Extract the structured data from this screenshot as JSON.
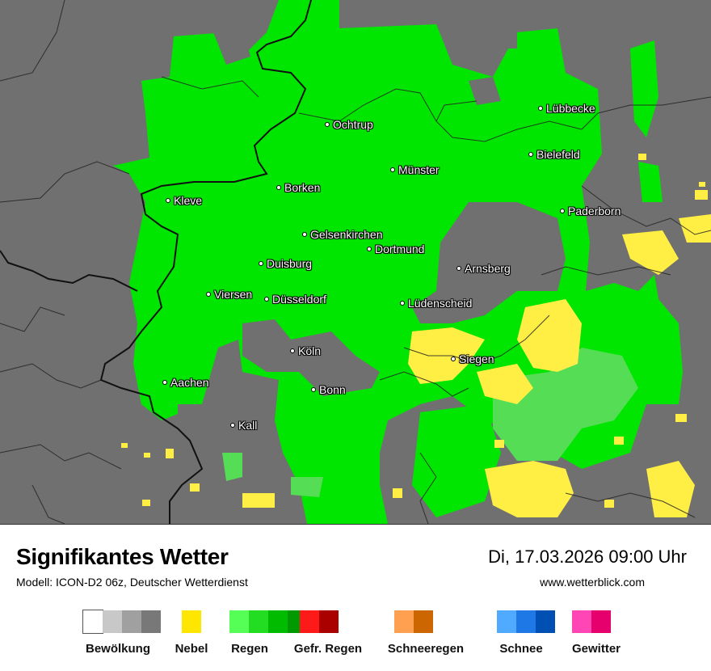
{
  "map": {
    "cities": [
      {
        "name": "Lübbecke"
      },
      {
        "name": "Ochtrup"
      },
      {
        "name": "Bielefeld"
      },
      {
        "name": "Münster"
      },
      {
        "name": "Borken"
      },
      {
        "name": "Kleve"
      },
      {
        "name": "Paderborn"
      },
      {
        "name": "Gelsenkirchen"
      },
      {
        "name": "Dortmund"
      },
      {
        "name": "Duisburg"
      },
      {
        "name": "Arnsberg"
      },
      {
        "name": "Viersen"
      },
      {
        "name": "Düsseldorf"
      },
      {
        "name": "Lüdenscheid"
      },
      {
        "name": "Köln"
      },
      {
        "name": "Siegen"
      },
      {
        "name": "Aachen"
      },
      {
        "name": "Bonn"
      },
      {
        "name": "Kall"
      }
    ],
    "colors": {
      "background_cloud": "#707070",
      "rain": "#00e600",
      "rain_light": "#55dd55",
      "fog": "#ffee44",
      "border": "#000000"
    }
  },
  "footer": {
    "title": "Signifikantes Wetter",
    "subtitle": "Modell: ICON-D2 06z, Deutscher Wetterdienst",
    "datetime": "Di, 17.03.2026 09:00 Uhr",
    "website": "www.wetterblick.com"
  },
  "legend": [
    {
      "label": "Bewölkung",
      "colors": [
        "#ffffff",
        "#c8c8c8",
        "#a0a0a0",
        "#787878"
      ]
    },
    {
      "label": "Nebel",
      "colors": [
        "#ffe600"
      ]
    },
    {
      "label": "Regen",
      "colors": [
        "#55ff55",
        "#22dd22",
        "#00bb00",
        "#009900"
      ]
    },
    {
      "label": "Gefr. Regen",
      "colors": [
        "#ff1a1a",
        "#aa0000"
      ]
    },
    {
      "label": "Schneeregen",
      "colors": [
        "#ffa050",
        "#cc6600"
      ]
    },
    {
      "label": "Schnee",
      "colors": [
        "#50aaff",
        "#1e78e6",
        "#0050b4"
      ]
    },
    {
      "label": "Gewitter",
      "colors": [
        "#ff46b4",
        "#e6006e"
      ]
    }
  ]
}
